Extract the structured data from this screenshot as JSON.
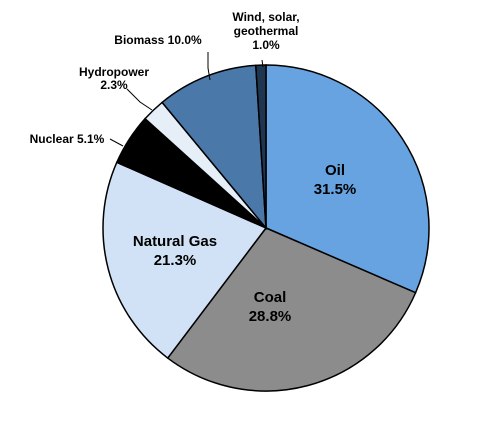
{
  "chart_data": {
    "type": "pie",
    "start_angle_deg": 0,
    "direction": "clockwise",
    "slices": [
      {
        "name": "Oil",
        "value": 31.5,
        "label_lines": [
          "Oil",
          "31.5%"
        ],
        "color": "#66A3E0",
        "placement": "inside"
      },
      {
        "name": "Coal",
        "value": 28.8,
        "label_lines": [
          "Coal",
          "28.8%"
        ],
        "color": "#8C8C8C",
        "placement": "inside"
      },
      {
        "name": "Natural Gas",
        "value": 21.3,
        "label_lines": [
          "Natural Gas",
          "21.3%"
        ],
        "color": "#D2E2F6",
        "placement": "inside"
      },
      {
        "name": "Nuclear",
        "value": 5.1,
        "label_lines": [
          "Nuclear 5.1%"
        ],
        "color": "#000000",
        "placement": "outside"
      },
      {
        "name": "Hydropower",
        "value": 2.3,
        "label_lines": [
          "Hydropower",
          "2.3%"
        ],
        "color": "#E6EEF8",
        "placement": "outside"
      },
      {
        "name": "Biomass",
        "value": 10.0,
        "label_lines": [
          "Biomass 10.0%"
        ],
        "color": "#4A78A8",
        "placement": "outside"
      },
      {
        "name": "Wind, solar, geothermal",
        "value": 1.0,
        "label_lines": [
          "Wind, solar,",
          "geothermal",
          "1.0%"
        ],
        "color": "#1F3550",
        "placement": "outside"
      }
    ]
  }
}
